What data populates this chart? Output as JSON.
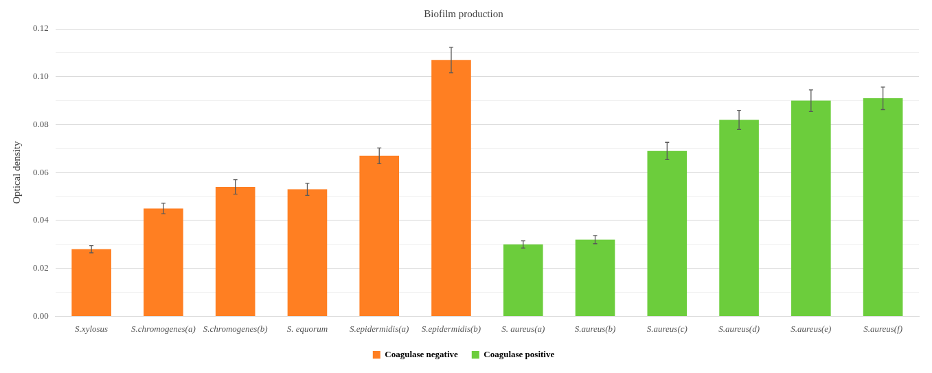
{
  "chart_data": {
    "type": "bar",
    "title": "Biofilm production",
    "ylabel": "Optical density",
    "categories": [
      "S.xylosus",
      "S.chromogenes(a)",
      "S.chromogenes(b)",
      "S. equorum",
      "S.epidermidis(a)",
      "S.epidermidis(b)",
      "S. aureus(a)",
      "S.aureus(b)",
      "S.aureus(c)",
      "S.aureus(d)",
      "S.aureus(e)",
      "S.aureus(f)"
    ],
    "series": [
      {
        "name": "Coagulase negative",
        "color": "#ff7f22",
        "values": [
          0.028,
          0.045,
          0.054,
          0.053,
          0.067,
          0.107,
          null,
          null,
          null,
          null,
          null,
          null
        ],
        "errors": [
          0.0015,
          0.0022,
          0.003,
          0.0025,
          0.0033,
          0.0053,
          null,
          null,
          null,
          null,
          null,
          null
        ]
      },
      {
        "name": "Coagulase positive",
        "color": "#6ccd3c",
        "values": [
          null,
          null,
          null,
          null,
          null,
          null,
          0.03,
          0.032,
          0.069,
          0.082,
          0.09,
          0.091
        ],
        "errors": [
          null,
          null,
          null,
          null,
          null,
          null,
          0.0015,
          0.0017,
          0.0036,
          0.004,
          0.0045,
          0.0047
        ]
      }
    ],
    "ylim": [
      0,
      0.12
    ],
    "yticks": [
      {
        "value": 0,
        "label": "0.00"
      },
      {
        "value": 0.01,
        "label": null
      },
      {
        "value": 0.02,
        "label": "0.02"
      },
      {
        "value": 0.03,
        "label": null
      },
      {
        "value": 0.04,
        "label": "0.04"
      },
      {
        "value": 0.05,
        "label": null
      },
      {
        "value": 0.06,
        "label": "0.06"
      },
      {
        "value": 0.07,
        "label": null
      },
      {
        "value": 0.08,
        "label": "0.08"
      },
      {
        "value": 0.09,
        "label": null
      },
      {
        "value": 0.1,
        "label": "0.10"
      },
      {
        "value": 0.11,
        "label": null
      },
      {
        "value": 0.12,
        "label": "0.12"
      }
    ],
    "grid": "y",
    "legend": "bottom"
  }
}
